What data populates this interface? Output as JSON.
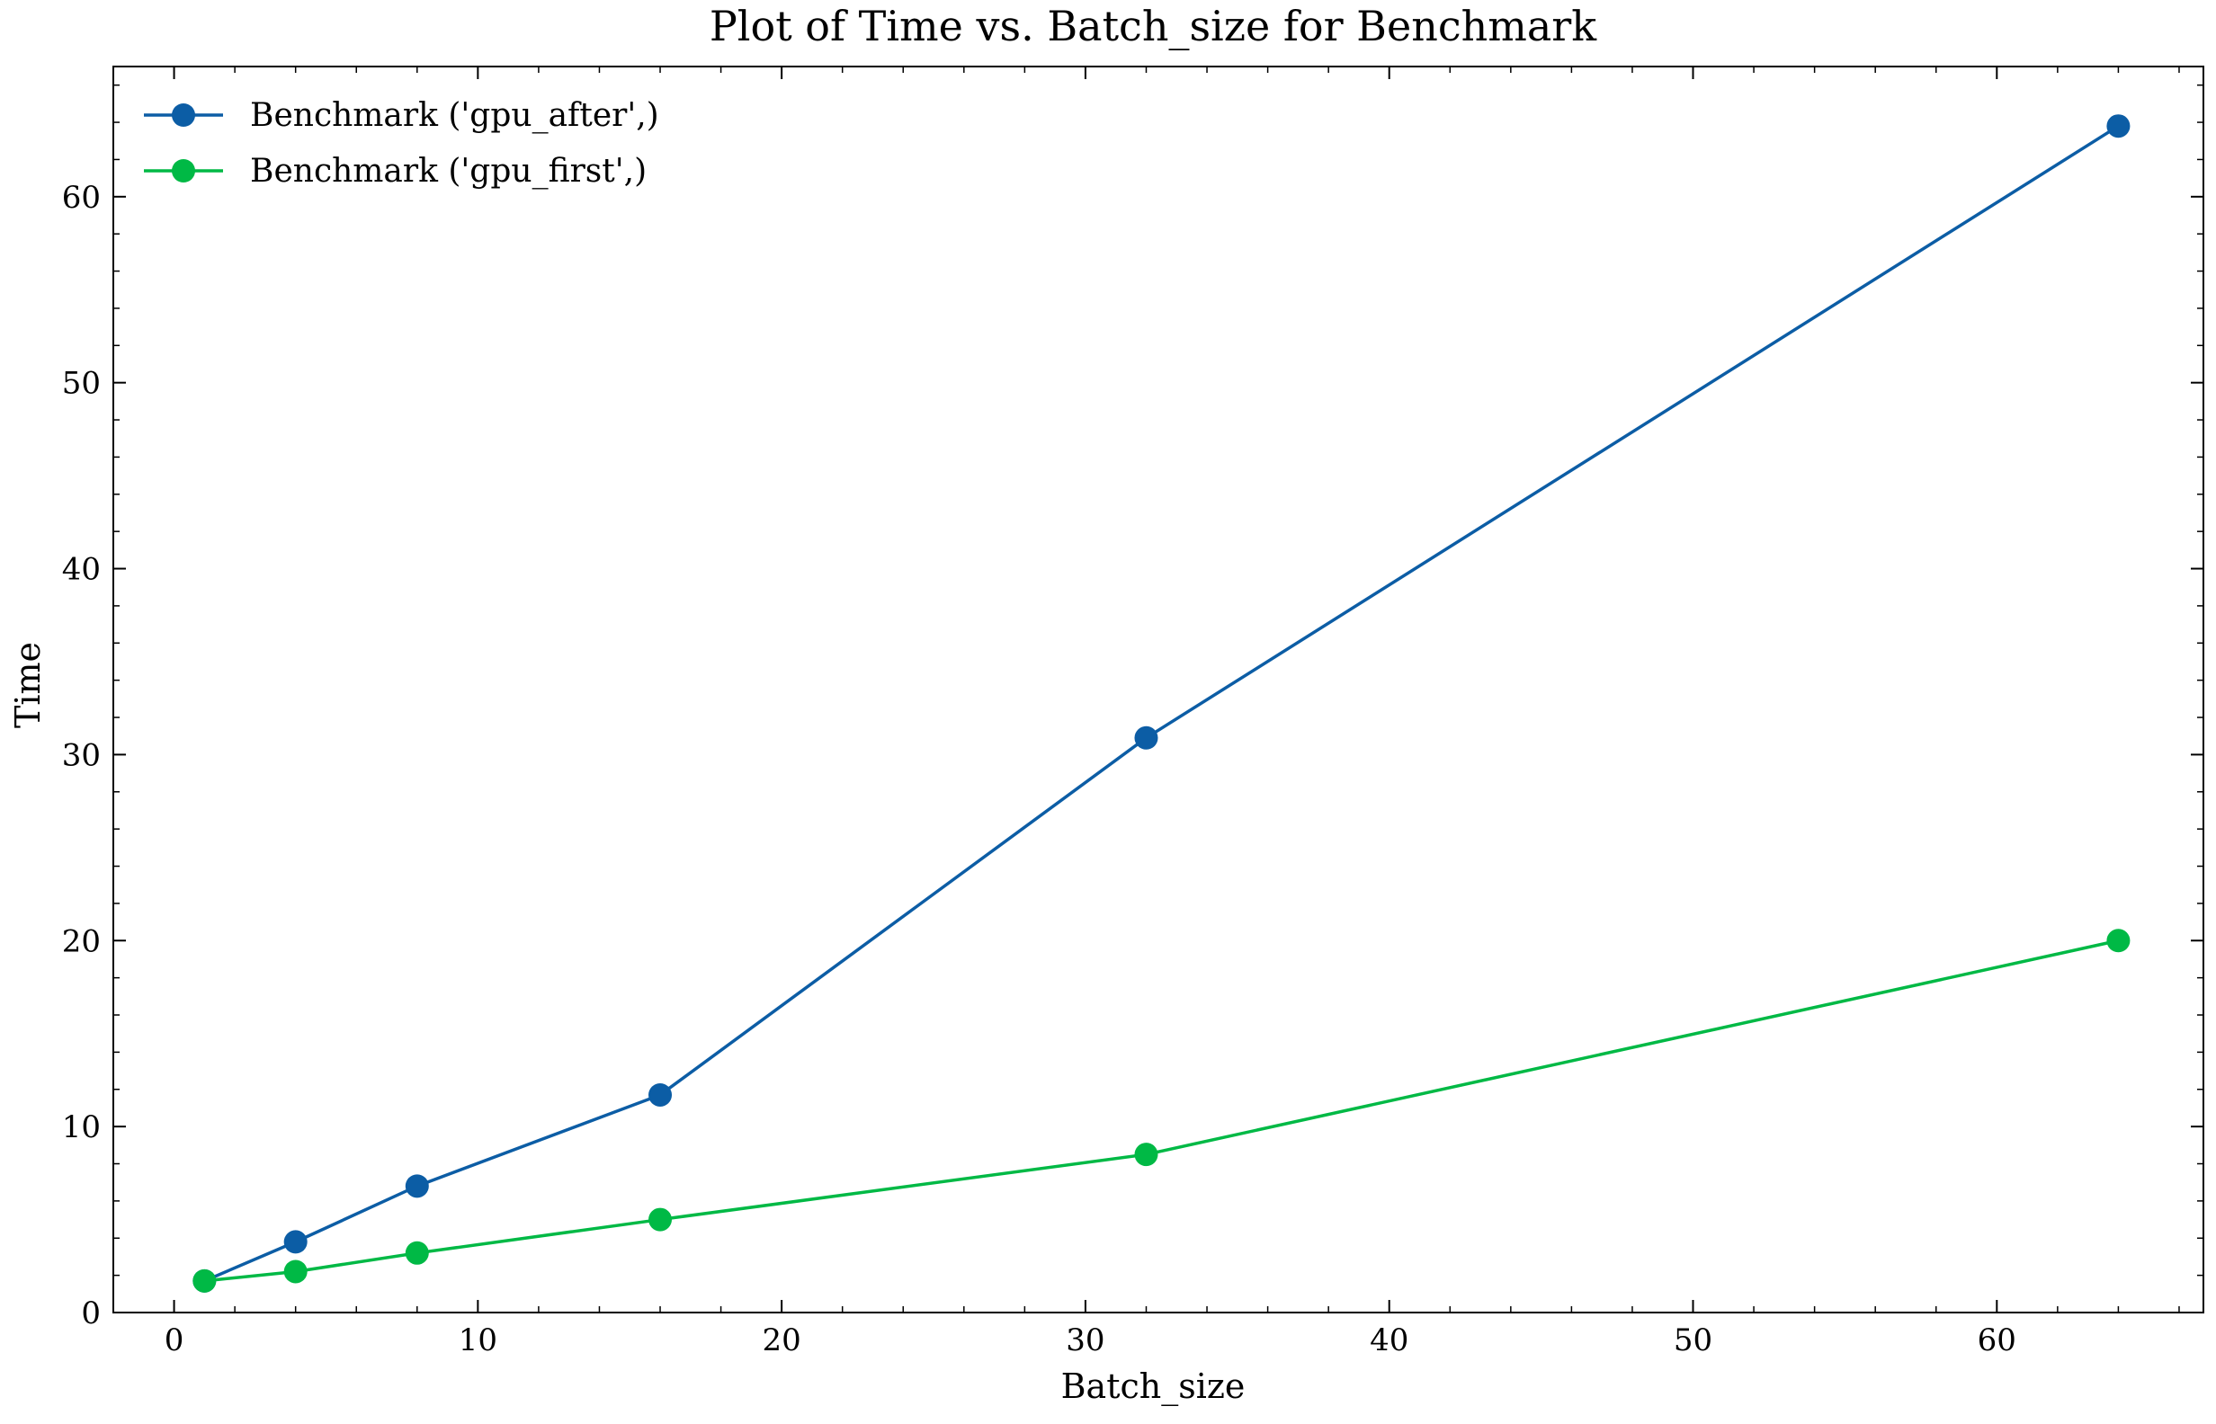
{
  "chart_data": {
    "type": "line",
    "title": "Plot of Time vs. Batch_size for Benchmark",
    "xlabel": "Batch_size",
    "ylabel": "Time",
    "xlim": [
      -2,
      66.8
    ],
    "ylim": [
      0,
      67
    ],
    "xticks": [
      0,
      10,
      20,
      30,
      40,
      50,
      60
    ],
    "yticks": [
      0,
      10,
      20,
      30,
      40,
      50,
      60
    ],
    "x": [
      1,
      4,
      8,
      16,
      32,
      64
    ],
    "series": [
      {
        "name": "Benchmark ('gpu_after',)",
        "color": "#0C5DA5",
        "values": [
          1.7,
          3.8,
          6.8,
          11.7,
          30.9,
          63.8
        ]
      },
      {
        "name": "Benchmark ('gpu_first',)",
        "color": "#00B945",
        "values": [
          1.7,
          2.2,
          3.2,
          5.0,
          8.5,
          20.0
        ]
      }
    ],
    "legend_position": "top-left",
    "grid": false
  }
}
